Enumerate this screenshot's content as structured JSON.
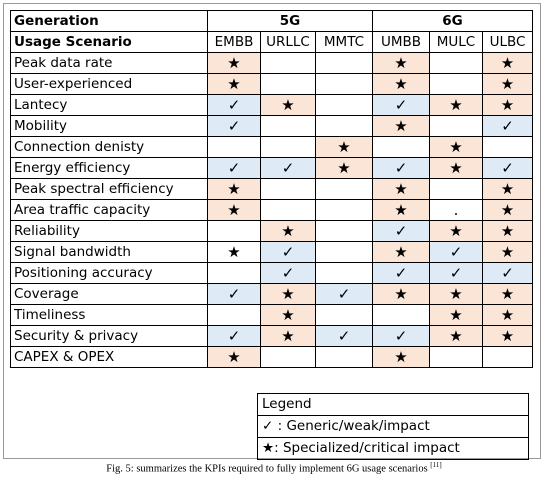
{
  "table": {
    "header": [
      "Generation",
      "5G",
      "6G"
    ],
    "subheader": [
      "Usage Scenario",
      "EMBB",
      "URLLC",
      "MMTC",
      "UMBB",
      "MULC",
      "ULBC"
    ],
    "rows": [
      {
        "label": "Peak data rate",
        "cells": [
          "★",
          null,
          null,
          "★",
          null,
          "★"
        ],
        "fills": [
          "#fbe5d6",
          null,
          null,
          "#fbe5d6",
          null,
          "#fbe5d6"
        ]
      },
      {
        "label": "User-experienced",
        "cells": [
          "★",
          null,
          null,
          "★",
          null,
          "★"
        ],
        "fills": [
          "#fbe5d6",
          null,
          null,
          "#fbe5d6",
          null,
          "#fbe5d6"
        ]
      },
      {
        "label": "Lantecy",
        "cells": [
          "✓",
          "★",
          null,
          "✓",
          "★",
          "★"
        ],
        "fills": [
          "#deebf7",
          "#fbe5d6",
          null,
          "#deebf7",
          "#fbe5d6",
          "#fbe5d6"
        ]
      },
      {
        "label": "Mobility",
        "cells": [
          "✓",
          null,
          null,
          "★",
          null,
          "✓"
        ],
        "fills": [
          "#deebf7",
          null,
          null,
          "#fbe5d6",
          null,
          "#deebf7"
        ]
      },
      {
        "label": "Connection denisty",
        "cells": [
          null,
          null,
          "★",
          null,
          "★",
          null
        ],
        "fills": [
          null,
          null,
          "#fbe5d6",
          null,
          "#fbe5d6",
          null
        ]
      },
      {
        "label": "Energy efficiency",
        "cells": [
          "✓",
          "✓",
          "★",
          "✓",
          "★",
          "✓"
        ],
        "fills": [
          "#deebf7",
          "#deebf7",
          "#fbe5d6",
          "#deebf7",
          "#fbe5d6",
          "#deebf7"
        ]
      },
      {
        "label": "Peak spectral efficiency",
        "cells": [
          "★",
          null,
          null,
          "★",
          null,
          "★"
        ],
        "fills": [
          "#fbe5d6",
          null,
          null,
          "#fbe5d6",
          null,
          "#fbe5d6"
        ]
      },
      {
        "label": "Area traffic capacity",
        "cells": [
          "★",
          null,
          null,
          "★",
          ".",
          "★"
        ],
        "fills": [
          "#fbe5d6",
          null,
          null,
          "#fbe5d6",
          null,
          "#fbe5d6"
        ]
      },
      {
        "label": "Reliability",
        "cells": [
          null,
          "★",
          null,
          "✓",
          "★",
          "★"
        ],
        "fills": [
          null,
          "#fbe5d6",
          null,
          "#deebf7",
          "#fbe5d6",
          "#fbe5d6"
        ]
      },
      {
        "label": "Signal bandwidth",
        "cells": [
          "★",
          "✓",
          null,
          "★",
          "✓",
          "★"
        ],
        "fills": [
          null,
          "#deebf7",
          null,
          "#fbe5d6",
          "#deebf7",
          "#fbe5d6"
        ]
      },
      {
        "label": "Positioning accuracy",
        "cells": [
          null,
          "✓",
          null,
          "✓",
          "✓",
          "✓"
        ],
        "fills": [
          null,
          "#deebf7",
          null,
          "#deebf7",
          "#deebf7",
          "#deebf7"
        ]
      },
      {
        "label": "Coverage",
        "cells": [
          "✓",
          "★",
          "✓",
          "★",
          "★",
          "★"
        ],
        "fills": [
          "#deebf7",
          "#fbe5d6",
          "#deebf7",
          "#fbe5d6",
          "#fbe5d6",
          "#fbe5d6"
        ]
      },
      {
        "label": "Timeliness",
        "cells": [
          null,
          "★",
          null,
          null,
          "★",
          "★"
        ],
        "fills": [
          null,
          "#fbe5d6",
          null,
          null,
          "#fbe5d6",
          "#fbe5d6"
        ]
      },
      {
        "label": "Security & privacy",
        "cells": [
          "✓",
          "★",
          "✓",
          "✓",
          "★",
          "★"
        ],
        "fills": [
          "#deebf7",
          "#fbe5d6",
          "#deebf7",
          "#deebf7",
          "#fbe5d6",
          "#fbe5d6"
        ]
      },
      {
        "label": "CAPEX & OPEX",
        "cells": [
          "★",
          null,
          null,
          "★",
          null,
          null
        ],
        "fills": [
          "#fbe5d6",
          null,
          null,
          "#fbe5d6",
          null,
          null
        ]
      }
    ]
  },
  "legend": {
    "title": "Legend",
    "items": [
      "✓ : Generic/weak/impact",
      "★: Specialized/critical impact"
    ]
  },
  "caption": {
    "text": "Fig. 5: summarizes the KPIs required to fully implement 6G usage scenarios ",
    "ref": "[11]"
  }
}
